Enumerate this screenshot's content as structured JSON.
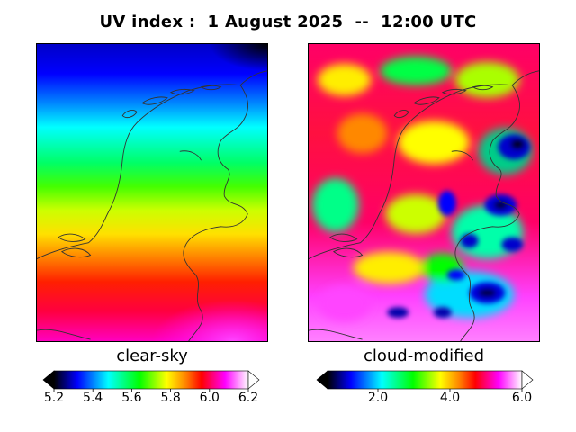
{
  "title": "UV index :  1 August 2025  --  12:00 UTC",
  "panels": {
    "left": {
      "label": "clear-sky",
      "colorbar": {
        "min": 5.2,
        "max": 6.2,
        "ticks": [
          "5.2",
          "5.4",
          "5.6",
          "5.8",
          "6.0",
          "6.2"
        ],
        "tick_values": [
          5.2,
          5.4,
          5.6,
          5.8,
          6.0,
          6.2
        ]
      }
    },
    "right": {
      "label": "cloud-modified",
      "colorbar": {
        "min": 0.6,
        "max": 6.0,
        "ticks": [
          "2.0",
          "4.0",
          "6.0"
        ],
        "tick_values": [
          2.0,
          4.0,
          6.0
        ]
      }
    }
  },
  "colors": {
    "colormap": [
      "#000000",
      "#0000ff",
      "#00ffff",
      "#00ff00",
      "#ffff00",
      "#ff8000",
      "#ff0000",
      "#ff00ff",
      "#ffffff"
    ],
    "coastline": "#333333"
  }
}
